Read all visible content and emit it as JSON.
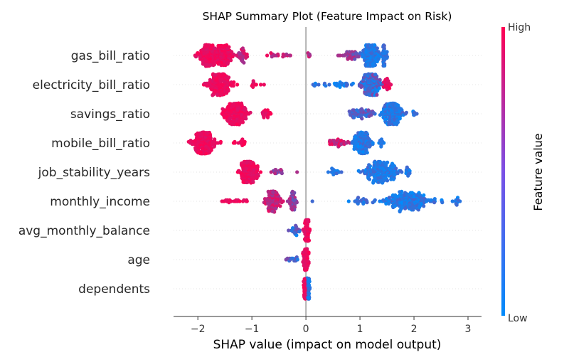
{
  "chart_data": {
    "type": "scatter",
    "subtype": "shap-beeswarm",
    "title": "SHAP Summary Plot (Feature Impact on Risk)",
    "xlabel": "SHAP value (impact on model output)",
    "xlim": [
      -2.45,
      3.25
    ],
    "xticks": [
      -2,
      -1,
      0,
      1,
      2,
      3
    ],
    "xtick_labels": [
      "−2",
      "−1",
      "0",
      "1",
      "2",
      "3"
    ],
    "colorbar": {
      "label": "Feature value",
      "high_label": "High",
      "low_label": "Low",
      "high_color": "#ff0052",
      "low_color": "#008bfb"
    },
    "zero_line": true,
    "series": [
      {
        "name": "gas_bill_ratio",
        "clusters": [
          {
            "center": -1.8,
            "spread": 0.28,
            "n": 150,
            "color": "high"
          },
          {
            "center": -1.5,
            "spread": 0.22,
            "n": 90,
            "color": "high"
          },
          {
            "center": -1.15,
            "spread": 0.14,
            "n": 30,
            "color": "mid-high"
          },
          {
            "center": -0.55,
            "spread": 0.35,
            "n": 16,
            "color": "mid-high"
          },
          {
            "center": 0.05,
            "spread": 0.05,
            "n": 6,
            "color": "mid-high"
          },
          {
            "center": 0.85,
            "spread": 0.25,
            "n": 40,
            "color": "mid"
          },
          {
            "center": 1.2,
            "spread": 0.22,
            "n": 160,
            "color": "low"
          },
          {
            "center": 1.45,
            "spread": 0.08,
            "n": 30,
            "color": "low"
          }
        ]
      },
      {
        "name": "electricity_bill_ratio",
        "clusters": [
          {
            "center": -1.6,
            "spread": 0.3,
            "n": 170,
            "color": "high"
          },
          {
            "center": -0.9,
            "spread": 0.15,
            "n": 10,
            "color": "high"
          },
          {
            "center": 0.15,
            "spread": 0.06,
            "n": 4,
            "color": "low"
          },
          {
            "center": 0.6,
            "spread": 0.35,
            "n": 25,
            "color": "low"
          },
          {
            "center": 1.2,
            "spread": 0.22,
            "n": 170,
            "color": "low-mid"
          },
          {
            "center": 1.5,
            "spread": 0.08,
            "n": 20,
            "color": "high"
          }
        ]
      },
      {
        "name": "savings_ratio",
        "clusters": [
          {
            "center": -1.3,
            "spread": 0.3,
            "n": 180,
            "color": "high"
          },
          {
            "center": -0.75,
            "spread": 0.12,
            "n": 20,
            "color": "high"
          },
          {
            "center": 1.0,
            "spread": 0.35,
            "n": 60,
            "color": "mid-low"
          },
          {
            "center": 1.6,
            "spread": 0.25,
            "n": 160,
            "color": "low"
          },
          {
            "center": 2.0,
            "spread": 0.06,
            "n": 8,
            "color": "low"
          }
        ]
      },
      {
        "name": "mobile_bill_ratio",
        "clusters": [
          {
            "center": -1.9,
            "spread": 0.28,
            "n": 190,
            "color": "high"
          },
          {
            "center": -1.2,
            "spread": 0.15,
            "n": 15,
            "color": "high"
          },
          {
            "center": 0.6,
            "spread": 0.3,
            "n": 35,
            "color": "mid-high"
          },
          {
            "center": 1.05,
            "spread": 0.18,
            "n": 150,
            "color": "low"
          },
          {
            "center": 1.4,
            "spread": 0.06,
            "n": 10,
            "color": "low"
          }
        ]
      },
      {
        "name": "job_stability_years",
        "clusters": [
          {
            "center": -1.05,
            "spread": 0.2,
            "n": 170,
            "color": "high"
          },
          {
            "center": -0.55,
            "spread": 0.15,
            "n": 15,
            "color": "mid"
          },
          {
            "center": -0.15,
            "spread": 0.03,
            "n": 1,
            "color": "mid"
          },
          {
            "center": 0.5,
            "spread": 0.2,
            "n": 15,
            "color": "low"
          },
          {
            "center": 1.4,
            "spread": 0.45,
            "n": 190,
            "color": "low"
          },
          {
            "center": 1.9,
            "spread": 0.08,
            "n": 15,
            "color": "low"
          }
        ]
      },
      {
        "name": "monthly_income",
        "clusters": [
          {
            "center": -1.3,
            "spread": 0.3,
            "n": 20,
            "color": "high"
          },
          {
            "center": -0.6,
            "spread": 0.2,
            "n": 100,
            "color": "mid-high"
          },
          {
            "center": -0.25,
            "spread": 0.12,
            "n": 40,
            "color": "mid"
          },
          {
            "center": 0.15,
            "spread": 0.03,
            "n": 1,
            "color": "low"
          },
          {
            "center": 1.0,
            "spread": 0.25,
            "n": 20,
            "color": "low"
          },
          {
            "center": 1.9,
            "spread": 0.6,
            "n": 200,
            "color": "low"
          },
          {
            "center": 2.8,
            "spread": 0.12,
            "n": 10,
            "color": "low"
          }
        ]
      },
      {
        "name": "avg_monthly_balance",
        "clusters": [
          {
            "center": -0.2,
            "spread": 0.12,
            "n": 20,
            "color": "low-mid"
          },
          {
            "center": 0.02,
            "spread": 0.06,
            "n": 80,
            "color": "high"
          }
        ]
      },
      {
        "name": "age",
        "clusters": [
          {
            "center": -0.25,
            "spread": 0.12,
            "n": 15,
            "color": "low-mid"
          },
          {
            "center": 0.0,
            "spread": 0.06,
            "n": 80,
            "color": "high"
          }
        ]
      },
      {
        "name": "dependents",
        "clusters": [
          {
            "center": -0.02,
            "spread": 0.04,
            "n": 50,
            "color": "high"
          },
          {
            "center": 0.05,
            "spread": 0.04,
            "n": 40,
            "color": "low"
          }
        ]
      }
    ]
  }
}
